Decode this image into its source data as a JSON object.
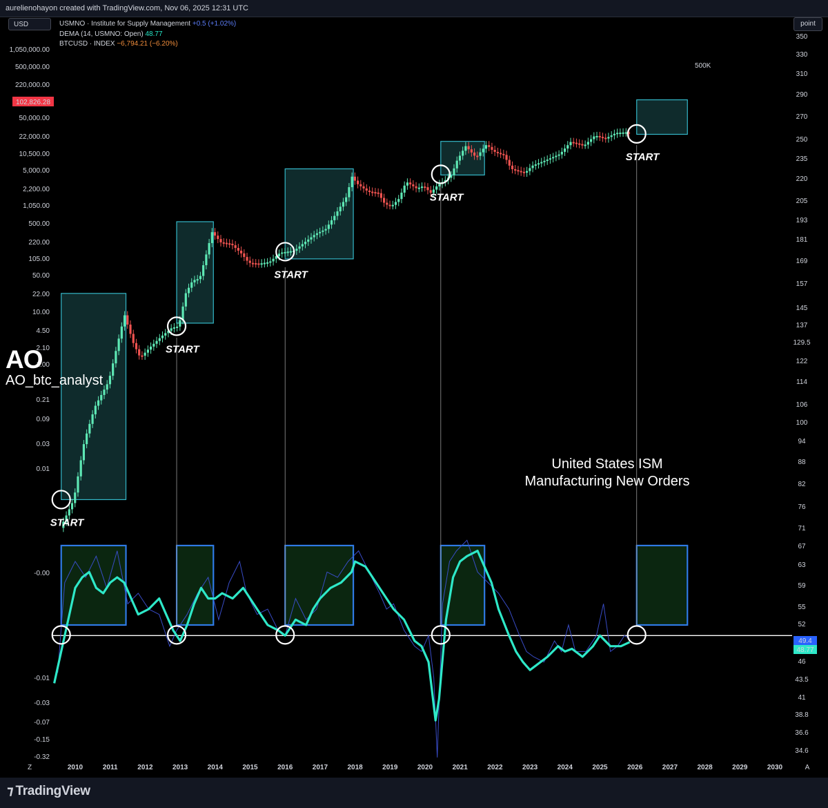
{
  "header": {
    "credit": "aurelienohayon created with TradingView.com, Nov 06, 2025 12:31 UTC"
  },
  "controls": {
    "currency": "USD",
    "scale_mode": "point"
  },
  "legend": {
    "row1_name": "USMNO · Institute for Supply Management",
    "row1_change": "+0.5 (+1.02%)",
    "row2_name": "DEMA (14, USMNO: Open)",
    "row2_value": "48.77",
    "row3_name": "BTCUSD · INDEX",
    "row3_change": "−6,794.21 (−6.20%)"
  },
  "watermark": {
    "logo": "AO",
    "handle": "AO_btc_analyst"
  },
  "annotations": {
    "ism_line1": "United States ISM",
    "ism_line2": "Manufacturing New Orders",
    "target_label": "500K",
    "start_label": "START"
  },
  "footer": {
    "brand": "TradingView",
    "z_label": "Z",
    "a_label": "A"
  },
  "colors": {
    "background": "#000000",
    "up_candle": "#5ee8b5",
    "down_candle": "#ef5350",
    "box_top_border": "#34b8c9",
    "box_top_fill": "#0f2b2c",
    "box_bottom_border": "#2f7ae5",
    "box_bottom_fill": "#0b2610",
    "dema_line": "#2ee8c8",
    "ism_raw_line": "#3b4fd0",
    "threshold_line": "#ffffff",
    "price_badge": "#f23645"
  },
  "chart_data": {
    "type": "line",
    "x_ticks": [
      "2010",
      "2011",
      "2012",
      "2013",
      "2014",
      "2015",
      "2016",
      "2017",
      "2018",
      "2019",
      "2020",
      "2021",
      "2022",
      "2023",
      "2024",
      "2025",
      "2026",
      "2027",
      "2028",
      "2029",
      "2030"
    ],
    "left_axis_ticks": [
      "1,050,000.00",
      "500,000.00",
      "220,000.00",
      "50,000.00",
      "22,000.00",
      "10,500.00",
      "5,000.00",
      "2,200.00",
      "1,050.00",
      "500.00",
      "220.00",
      "105.00",
      "50.00",
      "22.00",
      "10.00",
      "4.50",
      "2.10",
      "1.00",
      "0.21",
      "0.09",
      "0.03",
      "0.01",
      "-0.00",
      "-0.01",
      "-0.03",
      "-0.07",
      "-0.15",
      "-0.32"
    ],
    "right_axis_ticks": [
      "350",
      "330",
      "310",
      "290",
      "270",
      "250",
      "235",
      "220",
      "205",
      "193",
      "181",
      "169",
      "157",
      "145",
      "137",
      "129.5",
      "122",
      "114",
      "106",
      "100",
      "94",
      "88",
      "82",
      "76",
      "71",
      "67",
      "63",
      "59",
      "55",
      "52",
      "46",
      "43.5",
      "41",
      "38.8",
      "36.6",
      "34.6"
    ],
    "last_price_badge": "102,826.28",
    "right_badges": [
      "49.4",
      "48.77"
    ],
    "threshold": 50,
    "series": [
      {
        "name": "BTCUSD · INDEX",
        "scale": "log",
        "points": [
          [
            2009.6,
            0.001
          ],
          [
            2010.0,
            0.004
          ],
          [
            2010.3,
            0.06
          ],
          [
            2010.6,
            0.3
          ],
          [
            2011.0,
            1.0
          ],
          [
            2011.3,
            8
          ],
          [
            2011.45,
            22
          ],
          [
            2011.7,
            6
          ],
          [
            2011.9,
            3
          ],
          [
            2012.2,
            5
          ],
          [
            2012.5,
            8
          ],
          [
            2012.8,
            12
          ],
          [
            2013.0,
            13
          ],
          [
            2013.2,
            60
          ],
          [
            2013.4,
            110
          ],
          [
            2013.6,
            120
          ],
          [
            2013.8,
            400
          ],
          [
            2013.95,
            1050
          ],
          [
            2014.2,
            650
          ],
          [
            2014.5,
            600
          ],
          [
            2014.8,
            380
          ],
          [
            2015.0,
            250
          ],
          [
            2015.3,
            240
          ],
          [
            2015.6,
            260
          ],
          [
            2015.9,
            400
          ],
          [
            2016.1,
            420
          ],
          [
            2016.3,
            440
          ],
          [
            2016.6,
            650
          ],
          [
            2016.9,
            950
          ],
          [
            2017.2,
            1200
          ],
          [
            2017.5,
            2500
          ],
          [
            2017.8,
            5500
          ],
          [
            2017.95,
            14000
          ],
          [
            2018.1,
            10000
          ],
          [
            2018.4,
            7000
          ],
          [
            2018.7,
            6500
          ],
          [
            2018.9,
            3800
          ],
          [
            2019.1,
            3600
          ],
          [
            2019.3,
            5000
          ],
          [
            2019.5,
            11000
          ],
          [
            2019.8,
            8000
          ],
          [
            2020.0,
            9000
          ],
          [
            2020.2,
            6500
          ],
          [
            2020.4,
            9300
          ],
          [
            2020.6,
            11500
          ],
          [
            2020.8,
            15000
          ],
          [
            2020.95,
            29000
          ],
          [
            2021.2,
            58000
          ],
          [
            2021.5,
            34000
          ],
          [
            2021.8,
            62000
          ],
          [
            2022.0,
            45000
          ],
          [
            2022.3,
            38000
          ],
          [
            2022.5,
            20000
          ],
          [
            2022.9,
            16500
          ],
          [
            2023.1,
            23000
          ],
          [
            2023.5,
            30000
          ],
          [
            2023.9,
            40000
          ],
          [
            2024.2,
            70000
          ],
          [
            2024.6,
            60000
          ],
          [
            2024.9,
            95000
          ],
          [
            2025.2,
            82000
          ],
          [
            2025.5,
            107000
          ],
          [
            2025.8,
            110000
          ],
          [
            2025.85,
            102826
          ]
        ]
      },
      {
        "name": "USMNO · Institute for Supply Management",
        "points": [
          [
            2009.5,
            43
          ],
          [
            2009.7,
            60
          ],
          [
            2010.0,
            64
          ],
          [
            2010.3,
            61
          ],
          [
            2010.6,
            65
          ],
          [
            2010.9,
            59
          ],
          [
            2011.2,
            66
          ],
          [
            2011.5,
            56
          ],
          [
            2011.8,
            58
          ],
          [
            2012.1,
            55
          ],
          [
            2012.4,
            54
          ],
          [
            2012.7,
            48
          ],
          [
            2012.9,
            51
          ],
          [
            2013.2,
            54
          ],
          [
            2013.5,
            58
          ],
          [
            2013.8,
            61
          ],
          [
            2014.1,
            53
          ],
          [
            2014.4,
            60
          ],
          [
            2014.7,
            64
          ],
          [
            2014.9,
            58
          ],
          [
            2015.2,
            54
          ],
          [
            2015.5,
            55
          ],
          [
            2015.8,
            51
          ],
          [
            2016.0,
            50
          ],
          [
            2016.3,
            57
          ],
          [
            2016.6,
            53
          ],
          [
            2016.9,
            55
          ],
          [
            2017.2,
            62
          ],
          [
            2017.5,
            61
          ],
          [
            2017.8,
            64
          ],
          [
            2018.1,
            66
          ],
          [
            2018.4,
            62
          ],
          [
            2018.7,
            58
          ],
          [
            2018.9,
            55
          ],
          [
            2019.1,
            56
          ],
          [
            2019.4,
            51
          ],
          [
            2019.7,
            48
          ],
          [
            2019.9,
            47
          ],
          [
            2020.1,
            50
          ],
          [
            2020.25,
            42
          ],
          [
            2020.35,
            27
          ],
          [
            2020.5,
            56
          ],
          [
            2020.7,
            64
          ],
          [
            2020.9,
            66
          ],
          [
            2021.2,
            68
          ],
          [
            2021.5,
            62
          ],
          [
            2021.8,
            60
          ],
          [
            2022.1,
            58
          ],
          [
            2022.4,
            55
          ],
          [
            2022.7,
            50
          ],
          [
            2022.9,
            47
          ],
          [
            2023.1,
            46
          ],
          [
            2023.4,
            45
          ],
          [
            2023.7,
            49
          ],
          [
            2023.9,
            47
          ],
          [
            2024.1,
            52
          ],
          [
            2024.3,
            47
          ],
          [
            2024.6,
            47
          ],
          [
            2024.9,
            50
          ],
          [
            2025.1,
            56
          ],
          [
            2025.3,
            47
          ],
          [
            2025.5,
            48
          ],
          [
            2025.7,
            50
          ],
          [
            2025.85,
            49.4
          ]
        ]
      },
      {
        "name": "DEMA (14, USMNO: Open)",
        "points": [
          [
            2009.4,
            41
          ],
          [
            2009.6,
            47
          ],
          [
            2009.8,
            53
          ],
          [
            2010.0,
            59
          ],
          [
            2010.2,
            61
          ],
          [
            2010.4,
            62
          ],
          [
            2010.6,
            59
          ],
          [
            2010.8,
            58
          ],
          [
            2011.0,
            60
          ],
          [
            2011.2,
            61
          ],
          [
            2011.4,
            60
          ],
          [
            2011.6,
            57
          ],
          [
            2011.8,
            54
          ],
          [
            2012.1,
            55
          ],
          [
            2012.4,
            57
          ],
          [
            2012.6,
            54
          ],
          [
            2012.8,
            51
          ],
          [
            2013.0,
            49
          ],
          [
            2013.2,
            52
          ],
          [
            2013.4,
            56
          ],
          [
            2013.6,
            59
          ],
          [
            2013.8,
            57
          ],
          [
            2014.0,
            57
          ],
          [
            2014.2,
            58
          ],
          [
            2014.5,
            57
          ],
          [
            2014.8,
            59
          ],
          [
            2015.0,
            57
          ],
          [
            2015.2,
            55
          ],
          [
            2015.5,
            52
          ],
          [
            2015.8,
            51
          ],
          [
            2016.0,
            50
          ],
          [
            2016.3,
            53
          ],
          [
            2016.6,
            52
          ],
          [
            2016.8,
            55
          ],
          [
            2017.0,
            57
          ],
          [
            2017.3,
            59
          ],
          [
            2017.6,
            60
          ],
          [
            2017.9,
            62
          ],
          [
            2018.0,
            64
          ],
          [
            2018.3,
            63
          ],
          [
            2018.6,
            60
          ],
          [
            2018.9,
            57
          ],
          [
            2019.1,
            55
          ],
          [
            2019.4,
            53
          ],
          [
            2019.7,
            49
          ],
          [
            2019.9,
            48
          ],
          [
            2020.1,
            45
          ],
          [
            2020.3,
            34
          ],
          [
            2020.4,
            38
          ],
          [
            2020.6,
            53
          ],
          [
            2020.8,
            61
          ],
          [
            2021.0,
            64
          ],
          [
            2021.2,
            65
          ],
          [
            2021.5,
            66
          ],
          [
            2021.7,
            63
          ],
          [
            2021.9,
            60
          ],
          [
            2022.1,
            55
          ],
          [
            2022.4,
            50
          ],
          [
            2022.6,
            47
          ],
          [
            2022.8,
            45
          ],
          [
            2023.0,
            43.5
          ],
          [
            2023.3,
            45
          ],
          [
            2023.5,
            46
          ],
          [
            2023.8,
            48
          ],
          [
            2024.0,
            47
          ],
          [
            2024.2,
            47.5
          ],
          [
            2024.5,
            46
          ],
          [
            2024.8,
            48
          ],
          [
            2025.0,
            50
          ],
          [
            2025.3,
            48
          ],
          [
            2025.6,
            48
          ],
          [
            2025.85,
            48.77
          ]
        ]
      }
    ],
    "cycle_markers": [
      2009.6,
      2012.9,
      2016.0,
      2020.45,
      2026.05
    ]
  }
}
